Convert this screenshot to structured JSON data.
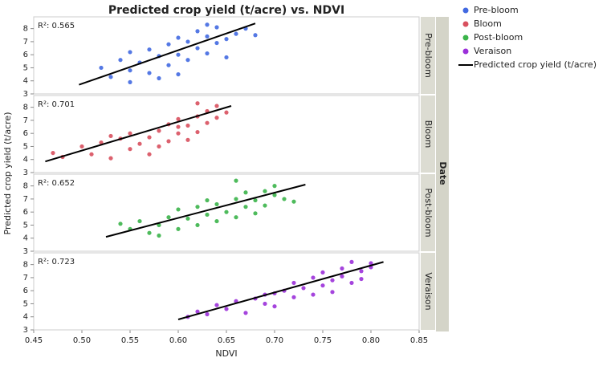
{
  "chart_data": {
    "type": "scatter",
    "title": "Predicted crop yield (t/acre) vs. NDVI",
    "x_label": "NDVI",
    "y_label": "Predicted crop yield (t/acre)",
    "facet_label": "Date",
    "fit_name": "Predicted crop yield (t/acre)",
    "fit_color": "#000000",
    "xlim": [
      0.45,
      0.85
    ],
    "xticks": [
      0.45,
      {
        "value": 0.5,
        "label": "0.50"
      },
      0.55,
      {
        "value": 0.6,
        "label": "0.60"
      },
      0.65,
      {
        "value": 0.7,
        "label": "0.70"
      },
      0.75,
      {
        "value": 0.8,
        "label": "0.80"
      },
      0.85
    ],
    "ylim": [
      3,
      8.9
    ],
    "yticks": [
      3,
      4,
      5,
      6,
      7,
      8
    ],
    "panels": [
      {
        "name": "Pre-bloom",
        "color": "#4169e1",
        "r2_label": "R²: 0.565",
        "x": [
          0.52,
          0.53,
          0.54,
          0.55,
          0.55,
          0.56,
          0.57,
          0.57,
          0.58,
          0.58,
          0.59,
          0.59,
          0.6,
          0.6,
          0.61,
          0.61,
          0.62,
          0.62,
          0.63,
          0.63,
          0.64,
          0.64,
          0.65,
          0.65,
          0.66,
          0.67,
          0.68,
          0.55,
          0.6,
          0.63
        ],
        "y": [
          5.0,
          4.3,
          5.6,
          4.8,
          6.2,
          5.4,
          4.6,
          6.4,
          5.9,
          4.2,
          6.8,
          5.2,
          6.0,
          7.3,
          5.6,
          7.0,
          6.5,
          7.8,
          6.1,
          7.4,
          6.9,
          8.1,
          7.2,
          5.8,
          7.6,
          8.0,
          7.5,
          3.9,
          4.5,
          8.3
        ],
        "fit": {
          "x": [
            0.497,
            0.68
          ],
          "y": [
            3.7,
            8.4
          ]
        }
      },
      {
        "name": "Bloom",
        "color": "#d8505e",
        "r2_label": "R²: 0.701",
        "x": [
          0.47,
          0.48,
          0.5,
          0.51,
          0.52,
          0.53,
          0.54,
          0.55,
          0.55,
          0.56,
          0.57,
          0.57,
          0.58,
          0.59,
          0.59,
          0.6,
          0.6,
          0.61,
          0.61,
          0.62,
          0.62,
          0.63,
          0.63,
          0.64,
          0.64,
          0.65,
          0.58,
          0.53,
          0.6,
          0.62
        ],
        "y": [
          4.5,
          4.2,
          5.0,
          4.4,
          5.3,
          4.1,
          5.6,
          4.8,
          6.0,
          5.2,
          5.7,
          4.4,
          6.2,
          5.4,
          6.7,
          6.0,
          7.1,
          5.5,
          6.6,
          7.3,
          6.1,
          7.7,
          6.8,
          7.2,
          8.1,
          7.6,
          5.0,
          5.8,
          6.5,
          8.3
        ],
        "fit": {
          "x": [
            0.462,
            0.655
          ],
          "y": [
            3.85,
            8.1
          ]
        }
      },
      {
        "name": "Post-bloom",
        "color": "#3bb44a",
        "r2_label": "R²: 0.652",
        "x": [
          0.54,
          0.55,
          0.56,
          0.57,
          0.58,
          0.59,
          0.6,
          0.6,
          0.61,
          0.62,
          0.62,
          0.63,
          0.64,
          0.64,
          0.65,
          0.66,
          0.66,
          0.67,
          0.67,
          0.68,
          0.68,
          0.69,
          0.69,
          0.7,
          0.7,
          0.71,
          0.72,
          0.58,
          0.63,
          0.66
        ],
        "y": [
          5.1,
          4.7,
          5.3,
          4.4,
          5.0,
          5.6,
          4.7,
          6.2,
          5.5,
          6.4,
          5.0,
          5.8,
          6.6,
          5.3,
          6.0,
          7.0,
          5.6,
          6.4,
          7.5,
          6.9,
          5.9,
          7.6,
          6.5,
          7.3,
          8.0,
          7.0,
          6.8,
          4.2,
          6.9,
          8.4
        ],
        "fit": {
          "x": [
            0.525,
            0.732
          ],
          "y": [
            4.1,
            8.1
          ]
        }
      },
      {
        "name": "Veraison",
        "color": "#9b30d9",
        "r2_label": "R²: 0.723",
        "x": [
          0.61,
          0.62,
          0.63,
          0.64,
          0.65,
          0.66,
          0.67,
          0.68,
          0.69,
          0.7,
          0.7,
          0.71,
          0.72,
          0.72,
          0.73,
          0.74,
          0.74,
          0.75,
          0.75,
          0.76,
          0.76,
          0.77,
          0.77,
          0.78,
          0.78,
          0.79,
          0.79,
          0.8,
          0.8,
          0.69
        ],
        "y": [
          4.0,
          4.4,
          4.2,
          4.9,
          4.6,
          5.2,
          4.3,
          5.4,
          5.0,
          5.8,
          4.8,
          6.0,
          5.5,
          6.6,
          6.2,
          5.7,
          7.0,
          6.4,
          7.4,
          6.8,
          5.9,
          7.7,
          7.1,
          6.6,
          8.2,
          7.5,
          6.9,
          7.8,
          8.1,
          5.7
        ],
        "fit": {
          "x": [
            0.6,
            0.813
          ],
          "y": [
            3.8,
            8.2
          ]
        }
      }
    ]
  }
}
